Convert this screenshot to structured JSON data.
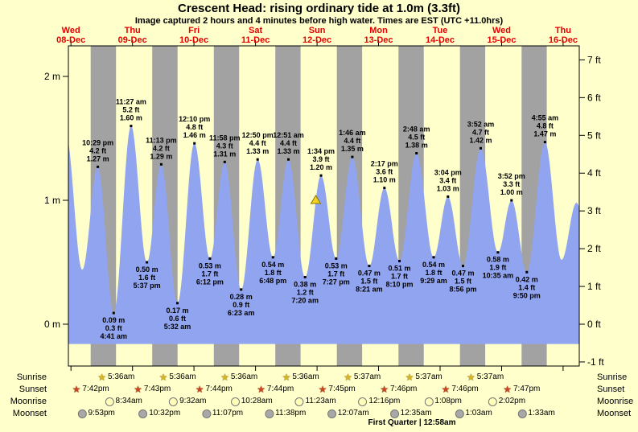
{
  "colors": {
    "background": "#ffffcc",
    "night_band": "#a2a2a2",
    "tide_fill": "#91a4f0",
    "day_label": "#e60000",
    "sunrise_star": "#d8b422",
    "sunset_star": "#cc4422",
    "moonrise_circle": "#ffffbb",
    "moonset_circle": "#a8a8a8",
    "marker": "#f0d020"
  },
  "icons": {
    "star": "★"
  },
  "chart_data": {
    "type": "area",
    "title": "Crescent Head: rising  ordinary tide at 1.0m (3.3ft)",
    "subtitle": "Image captured 2 hours and 4 minutes before high water. Times are EST (UTC +11.0hrs)",
    "ylim_m": [
      -0.34,
      2.25
    ],
    "x_domain_hours": [
      11,
      210.3
    ],
    "grid": false,
    "days": [
      {
        "name": "Wed",
        "date": "08-Dec"
      },
      {
        "name": "Thu",
        "date": "09-Dec"
      },
      {
        "name": "Fri",
        "date": "10-Dec"
      },
      {
        "name": "Sat",
        "date": "11-Dec"
      },
      {
        "name": "Sun",
        "date": "12-Dec"
      },
      {
        "name": "Mon",
        "date": "13-Dec"
      },
      {
        "name": "Tue",
        "date": "14-Dec"
      },
      {
        "name": "Wed",
        "date": "15-Dec"
      },
      {
        "name": "Thu",
        "date": "16-Dec"
      }
    ],
    "y_axis_left": [
      {
        "v": 2,
        "label": "2 m"
      },
      {
        "v": 1,
        "label": "1 m"
      },
      {
        "v": 0,
        "label": "0 m"
      }
    ],
    "y_axis_right": [
      {
        "v": 7,
        "label": "7 ft"
      },
      {
        "v": 6,
        "label": "6 ft"
      },
      {
        "v": 5,
        "label": "5 ft"
      },
      {
        "v": 4,
        "label": "4 ft"
      },
      {
        "v": 3,
        "label": "3 ft"
      },
      {
        "v": 2,
        "label": "2 ft"
      },
      {
        "v": 1,
        "label": "1 ft"
      },
      {
        "v": 0,
        "label": "0 ft"
      },
      {
        "v": -1,
        "label": "-1 ft"
      }
    ],
    "night_bands": [
      [
        19.7,
        29.6
      ],
      [
        43.717,
        53.6
      ],
      [
        67.733,
        77.6
      ],
      [
        91.733,
        101.6
      ],
      [
        115.75,
        125.617
      ],
      [
        139.767,
        149.617
      ],
      [
        163.767,
        173.617
      ],
      [
        187.783,
        197.62
      ]
    ],
    "tide_events": [
      {
        "day": 0,
        "hour": 22.483,
        "type": "high",
        "height_m": 1.27,
        "height_ft": 4.2,
        "time": "10:29 pm",
        "label": [
          "10:29 pm",
          "4.2 ft",
          "1.27 m"
        ]
      },
      {
        "day": 1,
        "hour": 4.683,
        "type": "low",
        "height_m": 0.09,
        "height_ft": 0.3,
        "time": "4:41 am",
        "label": [
          "0.09 m",
          "0.3 ft",
          "4:41 am"
        ]
      },
      {
        "day": 1,
        "hour": 11.45,
        "type": "high",
        "height_m": 1.6,
        "height_ft": 5.2,
        "time": "11:27 am",
        "label": [
          "11:27 am",
          "5.2 ft",
          "1.60 m"
        ]
      },
      {
        "day": 1,
        "hour": 17.617,
        "type": "low",
        "height_m": 0.5,
        "height_ft": 1.6,
        "time": "5:37 pm",
        "label": [
          "0.50 m",
          "1.6 ft",
          "5:37 pm"
        ]
      },
      {
        "day": 1,
        "hour": 23.217,
        "type": "high",
        "height_m": 1.29,
        "height_ft": 4.2,
        "time": "11:13 pm",
        "label": [
          "11:13 pm",
          "4.2 ft",
          "1.29 m"
        ]
      },
      {
        "day": 2,
        "hour": 5.533,
        "type": "low",
        "height_m": 0.17,
        "height_ft": 0.6,
        "time": "5:32 am",
        "label": [
          "0.17 m",
          "0.6 ft",
          "5:32 am"
        ]
      },
      {
        "day": 2,
        "hour": 12.167,
        "type": "high",
        "height_m": 1.46,
        "height_ft": 4.8,
        "time": "12:10 pm",
        "label": [
          "12:10 pm",
          "4.8 ft",
          "1.46 m"
        ]
      },
      {
        "day": 2,
        "hour": 18.2,
        "type": "low",
        "height_m": 0.53,
        "height_ft": 1.7,
        "time": "6:12 pm",
        "label": [
          "0.53 m",
          "1.7 ft",
          "6:12 pm"
        ]
      },
      {
        "day": 2,
        "hour": 23.967,
        "type": "high",
        "height_m": 1.31,
        "height_ft": 4.3,
        "time": "11:58 pm",
        "label": [
          "11:58 pm",
          "4.3 ft",
          "1.31 m"
        ]
      },
      {
        "day": 3,
        "hour": 6.383,
        "type": "low",
        "height_m": 0.28,
        "height_ft": 0.9,
        "time": "6:23 am",
        "label": [
          "0.28 m",
          "0.9 ft",
          "6:23 am"
        ]
      },
      {
        "day": 3,
        "hour": 12.833,
        "type": "high",
        "height_m": 1.33,
        "height_ft": 4.4,
        "time": "12:50 pm",
        "label": [
          "12:50 pm",
          "4.4 ft",
          "1.33 m"
        ]
      },
      {
        "day": 3,
        "hour": 18.8,
        "type": "low",
        "height_m": 0.54,
        "height_ft": 1.8,
        "time": "6:48 pm",
        "label": [
          "0.54 m",
          "1.8 ft",
          "6:48 pm"
        ]
      },
      {
        "day": 4,
        "hour": 0.85,
        "type": "high",
        "height_m": 1.33,
        "height_ft": 4.4,
        "time": "12:51 am",
        "label": [
          "12:51 am",
          "4.4 ft",
          "1.33 m"
        ]
      },
      {
        "day": 4,
        "hour": 7.333,
        "type": "low",
        "height_m": 0.38,
        "height_ft": 1.2,
        "time": "7:20 am",
        "label": [
          "0.38 m",
          "1.2 ft",
          "7:20 am"
        ]
      },
      {
        "day": 4,
        "hour": 13.567,
        "type": "high",
        "height_m": 1.2,
        "height_ft": 3.9,
        "time": "1:34 pm",
        "label": [
          "1:34 pm",
          "3.9 ft",
          "1.20 m"
        ]
      },
      {
        "day": 4,
        "hour": 19.45,
        "type": "low",
        "height_m": 0.53,
        "height_ft": 1.7,
        "time": "7:27 pm",
        "label": [
          "0.53 m",
          "1.7 ft",
          "7:27 pm"
        ]
      },
      {
        "day": 5,
        "hour": 1.767,
        "type": "high",
        "height_m": 1.35,
        "height_ft": 4.4,
        "time": "1:46 am",
        "label": [
          "1:46 am",
          "4.4 ft",
          "1.35 m"
        ]
      },
      {
        "day": 5,
        "hour": 8.35,
        "type": "low",
        "height_m": 0.47,
        "height_ft": 1.5,
        "time": "8:21 am",
        "label": [
          "0.47 m",
          "1.5 ft",
          "8:21 am"
        ]
      },
      {
        "day": 5,
        "hour": 14.283,
        "type": "high",
        "height_m": 1.1,
        "height_ft": 3.6,
        "time": "2:17 pm",
        "label": [
          "2:17 pm",
          "3.6 ft",
          "1.10 m"
        ]
      },
      {
        "day": 5,
        "hour": 20.167,
        "type": "low",
        "height_m": 0.51,
        "height_ft": 1.7,
        "time": "8:10 pm",
        "label": [
          "0.51 m",
          "1.7 ft",
          "8:10 pm"
        ]
      },
      {
        "day": 6,
        "hour": 2.8,
        "type": "high",
        "height_m": 1.38,
        "height_ft": 4.5,
        "time": "2:48 am",
        "label": [
          "2:48 am",
          "4.5 ft",
          "1.38 m"
        ]
      },
      {
        "day": 6,
        "hour": 9.483,
        "type": "low",
        "height_m": 0.54,
        "height_ft": 1.8,
        "time": "9:29 am",
        "label": [
          "0.54 m",
          "1.8 ft",
          "9:29 am"
        ]
      },
      {
        "day": 6,
        "hour": 15.067,
        "type": "high",
        "height_m": 1.03,
        "height_ft": 3.4,
        "time": "3:04 pm",
        "label": [
          "3:04 pm",
          "3.4 ft",
          "1.03 m"
        ]
      },
      {
        "day": 6,
        "hour": 20.933,
        "type": "low",
        "height_m": 0.47,
        "height_ft": 1.5,
        "time": "8:56 pm",
        "label": [
          "0.47 m",
          "1.5 ft",
          "8:56 pm"
        ]
      },
      {
        "day": 7,
        "hour": 3.867,
        "type": "high",
        "height_m": 1.42,
        "height_ft": 4.7,
        "time": "3:52 am",
        "label": [
          "3:52 am",
          "4.7 ft",
          "1.42 m"
        ]
      },
      {
        "day": 7,
        "hour": 10.583,
        "type": "low",
        "height_m": 0.58,
        "height_ft": 1.9,
        "time": "10:35 am",
        "label": [
          "0.58 m",
          "1.9 ft",
          "10:35 am"
        ]
      },
      {
        "day": 7,
        "hour": 15.867,
        "type": "high",
        "height_m": 1.0,
        "height_ft": 3.3,
        "time": "3:52 pm",
        "label": [
          "3:52 pm",
          "3.3 ft",
          "1.00 m"
        ]
      },
      {
        "day": 7,
        "hour": 21.833,
        "type": "low",
        "height_m": 0.42,
        "height_ft": 1.4,
        "time": "9:50 pm",
        "label": [
          "0.42 m",
          "1.4 ft",
          "9:50 pm"
        ]
      },
      {
        "day": 8,
        "hour": 4.917,
        "type": "high",
        "height_m": 1.47,
        "height_ft": 4.8,
        "time": "4:55 am",
        "label": [
          "4:55 am",
          "4.8 ft",
          "1.47 m"
        ]
      }
    ],
    "edge_extremes": [
      {
        "day": 0,
        "hour": 9.9,
        "height_m": 1.55
      },
      {
        "day": 0,
        "hour": 16.4,
        "height_m": 0.44
      },
      {
        "day": 8,
        "hour": 11.4,
        "height_m": 0.52
      },
      {
        "day": 8,
        "hour": 17.2,
        "height_m": 0.98
      },
      {
        "day": 8,
        "hour": 23.5,
        "height_m": 0.45
      }
    ],
    "marker": {
      "day": 4,
      "hour": 11.5,
      "height_m": 1.0,
      "shape": "triangle"
    }
  },
  "astro": {
    "row_labels": [
      "Sunrise",
      "Sunset",
      "Moonrise",
      "Moonset"
    ],
    "sunrise": [
      {
        "day": 1,
        "hour": 5.6,
        "time": "5:36am"
      },
      {
        "day": 2,
        "hour": 5.6,
        "time": "5:36am"
      },
      {
        "day": 3,
        "hour": 5.6,
        "time": "5:36am"
      },
      {
        "day": 4,
        "hour": 5.6,
        "time": "5:36am"
      },
      {
        "day": 5,
        "hour": 5.617,
        "time": "5:37am"
      },
      {
        "day": 6,
        "hour": 5.617,
        "time": "5:37am"
      },
      {
        "day": 7,
        "hour": 5.617,
        "time": "5:37am"
      }
    ],
    "sunset": [
      {
        "day": 0,
        "hour": 19.7,
        "time": "7:42pm"
      },
      {
        "day": 1,
        "hour": 19.717,
        "time": "7:43pm"
      },
      {
        "day": 2,
        "hour": 19.733,
        "time": "7:44pm"
      },
      {
        "day": 3,
        "hour": 19.733,
        "time": "7:44pm"
      },
      {
        "day": 4,
        "hour": 19.75,
        "time": "7:45pm"
      },
      {
        "day": 5,
        "hour": 19.767,
        "time": "7:46pm"
      },
      {
        "day": 6,
        "hour": 19.767,
        "time": "7:46pm"
      },
      {
        "day": 7,
        "hour": 19.783,
        "time": "7:47pm"
      }
    ],
    "moonrise": [
      {
        "day": 1,
        "hour": 8.567,
        "time": "8:34am"
      },
      {
        "day": 2,
        "hour": 9.533,
        "time": "9:32am"
      },
      {
        "day": 3,
        "hour": 10.467,
        "time": "10:28am"
      },
      {
        "day": 4,
        "hour": 11.383,
        "time": "11:23am"
      },
      {
        "day": 5,
        "hour": 12.267,
        "time": "12:16pm"
      },
      {
        "day": 6,
        "hour": 13.133,
        "time": "1:08pm"
      },
      {
        "day": 7,
        "hour": 14.033,
        "time": "2:02pm"
      }
    ],
    "moonset": [
      {
        "day": 0,
        "hour": 21.883,
        "time": "9:53pm"
      },
      {
        "day": 1,
        "hour": 22.533,
        "time": "10:32pm"
      },
      {
        "day": 2,
        "hour": 23.117,
        "time": "11:07pm"
      },
      {
        "day": 3,
        "hour": 23.633,
        "time": "11:38pm"
      },
      {
        "day": 5,
        "hour": 0.117,
        "time": "12:07am"
      },
      {
        "day": 6,
        "hour": 0.583,
        "time": "12:35am"
      },
      {
        "day": 7,
        "hour": 1.05,
        "time": "1:03am"
      },
      {
        "day": 8,
        "hour": 1.55,
        "time": "1:33am"
      }
    ],
    "footer": "First Quarter | 12:58am"
  }
}
